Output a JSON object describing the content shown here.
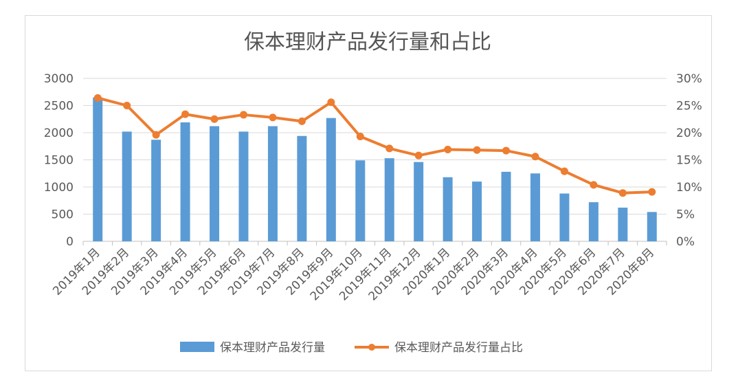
{
  "chart_data": {
    "type": "bar",
    "title": "保本理财产品发行量和占比",
    "categories": [
      "2019年1月",
      "2019年2月",
      "2019年3月",
      "2019年4月",
      "2019年5月",
      "2019年6月",
      "2019年7月",
      "2019年8月",
      "2019年9月",
      "2019年10月",
      "2019年11月",
      "2019年12月",
      "2020年1月",
      "2020年2月",
      "2020年3月",
      "2020年4月",
      "2020年5月",
      "2020年6月",
      "2020年7月",
      "2020年8月"
    ],
    "series": [
      {
        "name": "保本理财产品发行量",
        "type": "bar",
        "axis": "left",
        "color": "#5b9bd5",
        "values": [
          2650,
          2020,
          1870,
          2190,
          2120,
          2020,
          2120,
          1940,
          2270,
          1490,
          1530,
          1460,
          1180,
          1100,
          1280,
          1250,
          880,
          720,
          620,
          540
        ]
      },
      {
        "name": "保本理财产品发行量占比",
        "type": "line",
        "axis": "right",
        "color": "#ed7d31",
        "values": [
          26.4,
          25.0,
          19.6,
          23.4,
          22.5,
          23.3,
          22.8,
          22.1,
          25.6,
          19.3,
          17.1,
          15.8,
          16.9,
          16.8,
          16.7,
          15.6,
          12.9,
          10.4,
          8.9,
          9.1
        ]
      }
    ],
    "ylim": [
      0,
      3000
    ],
    "y_ticks": [
      "3000",
      "2500",
      "2000",
      "1500",
      "1000",
      "500",
      "0"
    ],
    "y2lim": [
      0,
      30
    ],
    "y2_ticks": [
      "30%",
      "25%",
      "20%",
      "15%",
      "10%",
      "5%",
      "0%"
    ],
    "grid": true,
    "legend_position": "bottom"
  }
}
